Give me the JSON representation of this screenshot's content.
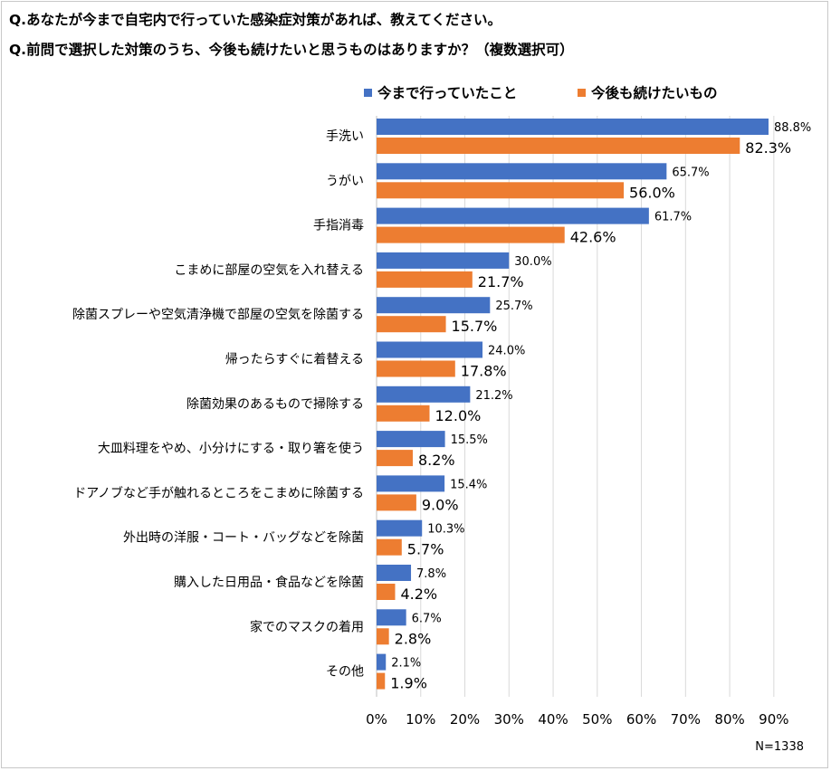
{
  "questions": {
    "q1": "Q.あなたが今まで自宅内で行っていた感染症対策があれば、教えてください。",
    "q2": "Q.前問で選択した対策のうち、今後も続けたいと思うものはありますか？（複数選択可）"
  },
  "note": "N=1338",
  "colors": {
    "series1": "#4472c4",
    "series2": "#ed7d31",
    "grid": "#d9d9d9",
    "axis": "#bfbfbf"
  },
  "chart_data": {
    "type": "bar",
    "orientation": "horizontal",
    "categories": [
      "手洗い",
      "うがい",
      "手指消毒",
      "こまめに部屋の空気を入れ替える",
      "除菌スプレーや空気清浄機で部屋の空気を除菌する",
      "帰ったらすぐに着替える",
      "除菌効果のあるもので掃除する",
      "大皿料理をやめ、小分けにする・取り箸を使う",
      "ドアノブなど手が触れるところをこまめに除菌する",
      "外出時の洋服・コート・バッグなどを除菌",
      "購入した日用品・食品などを除菌",
      "家でのマスクの着用",
      "その他"
    ],
    "series": [
      {
        "name": "今まで行っていたこと",
        "values": [
          88.8,
          65.7,
          61.7,
          30.0,
          25.7,
          24.0,
          21.2,
          15.5,
          15.4,
          10.3,
          7.8,
          6.7,
          2.1
        ],
        "labels": [
          "88.8%",
          "65.7%",
          "61.7%",
          "30.0%",
          "25.7%",
          "24.0%",
          "21.2%",
          "15.5%",
          "15.4%",
          "10.3%",
          "7.8%",
          "6.7%",
          "2.1%"
        ]
      },
      {
        "name": "今後も続けたいもの",
        "values": [
          82.3,
          56.0,
          42.6,
          21.7,
          15.7,
          17.8,
          12.0,
          8.2,
          9.0,
          5.7,
          4.2,
          2.8,
          1.9
        ],
        "labels": [
          "82.3%",
          "56.0%",
          "42.6%",
          "21.7%",
          "15.7%",
          "17.8%",
          "12.0%",
          "8.2%",
          "9.0%",
          "5.7%",
          "4.2%",
          "2.8%",
          "1.9%"
        ]
      }
    ],
    "xlim": [
      0,
      90
    ],
    "xticks": [
      "0%",
      "10%",
      "20%",
      "30%",
      "40%",
      "50%",
      "60%",
      "70%",
      "80%",
      "90%"
    ],
    "grid": true,
    "legend_position": "top"
  }
}
